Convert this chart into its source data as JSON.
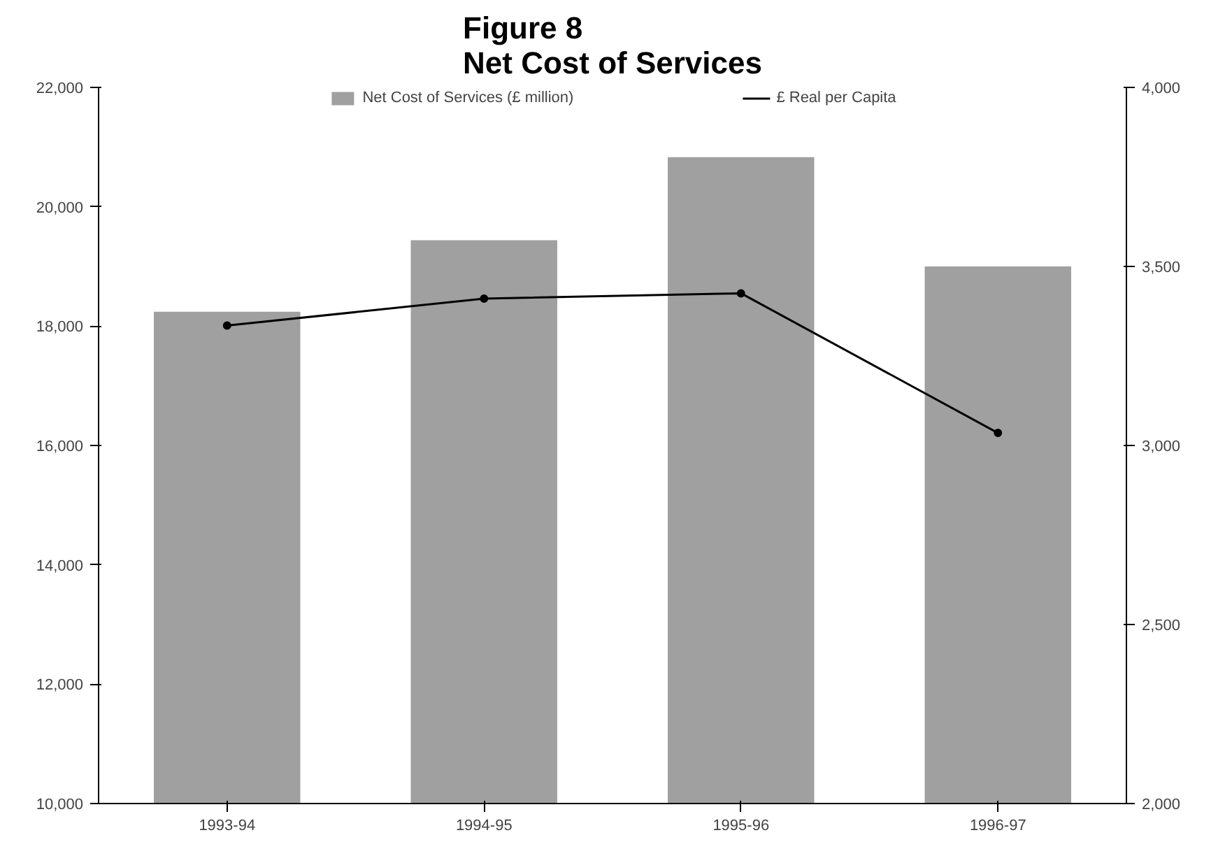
{
  "chart_data": {
    "type": "bar",
    "title": "Figure 8\nNet Cost of Services",
    "categories": [
      "1993-94",
      "1994-95",
      "1995-96",
      "1996-97"
    ],
    "series": [
      {
        "name": "Net Cost of Services (£ million)",
        "color": "#a0a0a0",
        "values": [
          18240,
          19440,
          20830,
          19000
        ]
      },
      {
        "name": "£ Real per Capita",
        "type": "line",
        "axis": "y2",
        "color": "#000000",
        "values": [
          3335,
          3410,
          3425,
          3035
        ]
      }
    ],
    "ylim": [
      10000,
      22000
    ],
    "yticks": [
      {
        "value": 10000,
        "label": "10,000"
      },
      {
        "value": 12000,
        "label": "12,000"
      },
      {
        "value": 14000,
        "label": "14,000"
      },
      {
        "value": 16000,
        "label": "16,000"
      },
      {
        "value": 18000,
        "label": "18,000"
      },
      {
        "value": 20000,
        "label": "20,000"
      },
      {
        "value": 22000,
        "label": "22,000"
      }
    ],
    "y2lim": [
      2000,
      4000
    ],
    "y2ticks": [
      {
        "value": 2000,
        "label": "2,000"
      },
      {
        "value": 2500,
        "label": "2,500"
      },
      {
        "value": 3000,
        "label": "3,000"
      },
      {
        "value": 3500,
        "label": "3,500"
      },
      {
        "value": 4000,
        "label": "4,000"
      }
    ],
    "legend": "top",
    "grid": false,
    "marker": "circle"
  }
}
